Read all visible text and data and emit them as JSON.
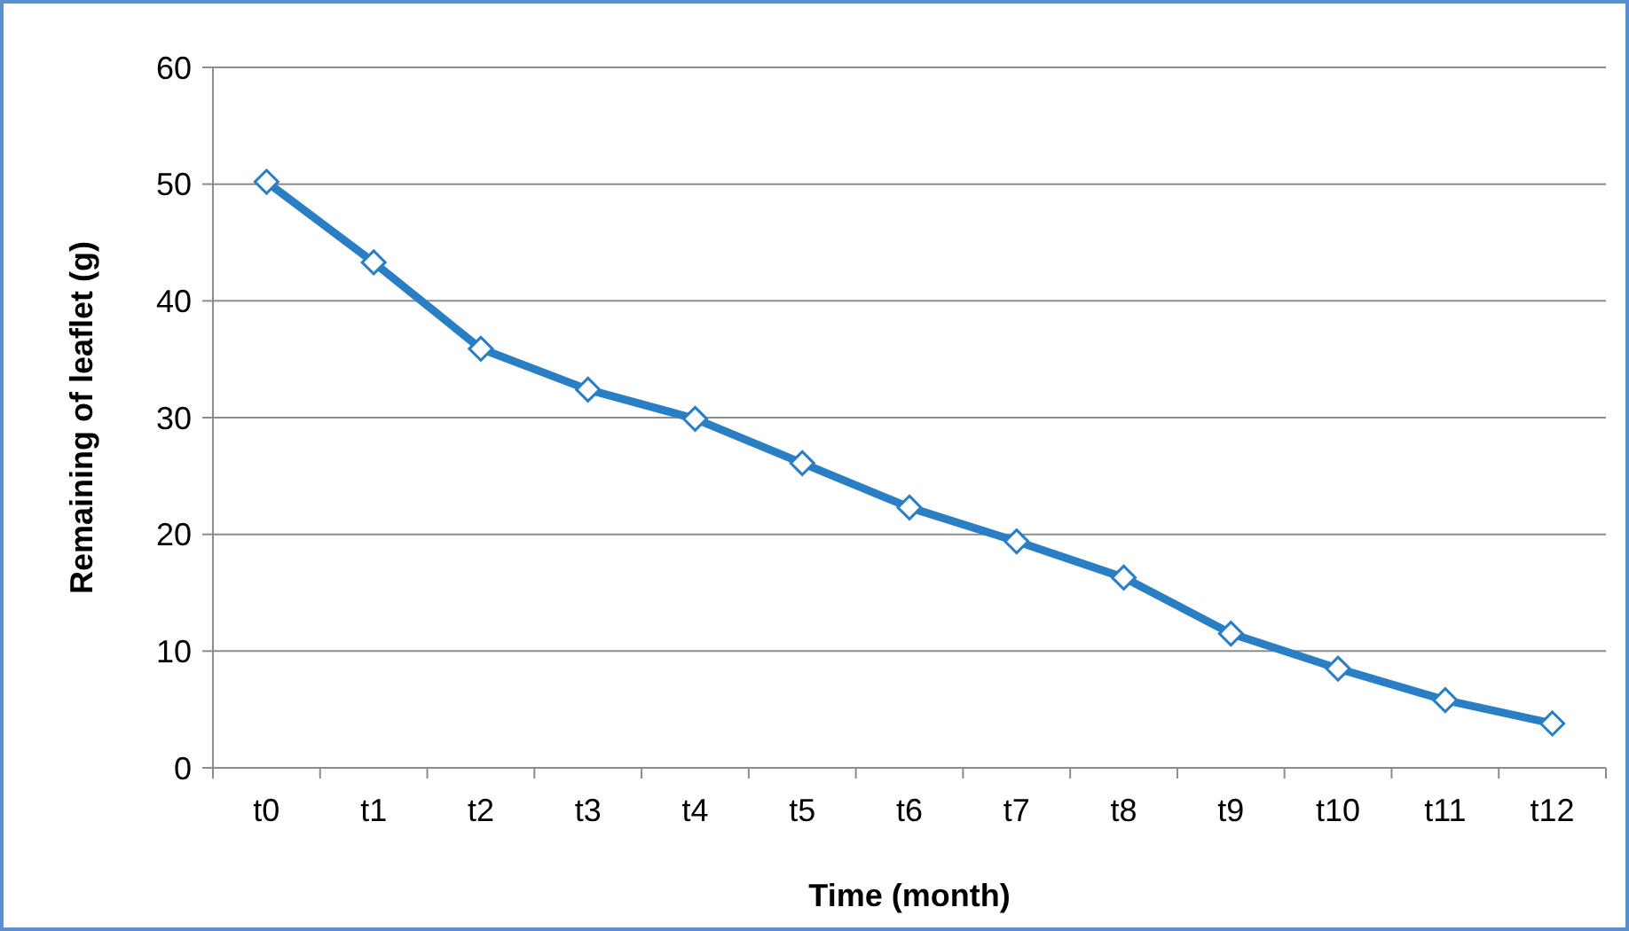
{
  "chart_data": {
    "type": "line",
    "xlabel": "Time (month)",
    "ylabel": "Remaining of leaflet (g)",
    "categories": [
      "t0",
      "t1",
      "t2",
      "t3",
      "t4",
      "t5",
      "t6",
      "t7",
      "t8",
      "t9",
      "t10",
      "t11",
      "t12"
    ],
    "series": [
      {
        "color": "#2a7fc4",
        "values": [
          50.2,
          43.3,
          35.9,
          32.4,
          29.9,
          26.1,
          22.3,
          19.4,
          16.3,
          11.5,
          8.5,
          5.8,
          3.8
        ]
      }
    ],
    "ylim": [
      0,
      60
    ],
    "yticks": [
      0,
      10,
      20,
      30,
      40,
      50,
      60
    ],
    "grid": "y",
    "marker": "diamond",
    "line_style": "solid"
  }
}
